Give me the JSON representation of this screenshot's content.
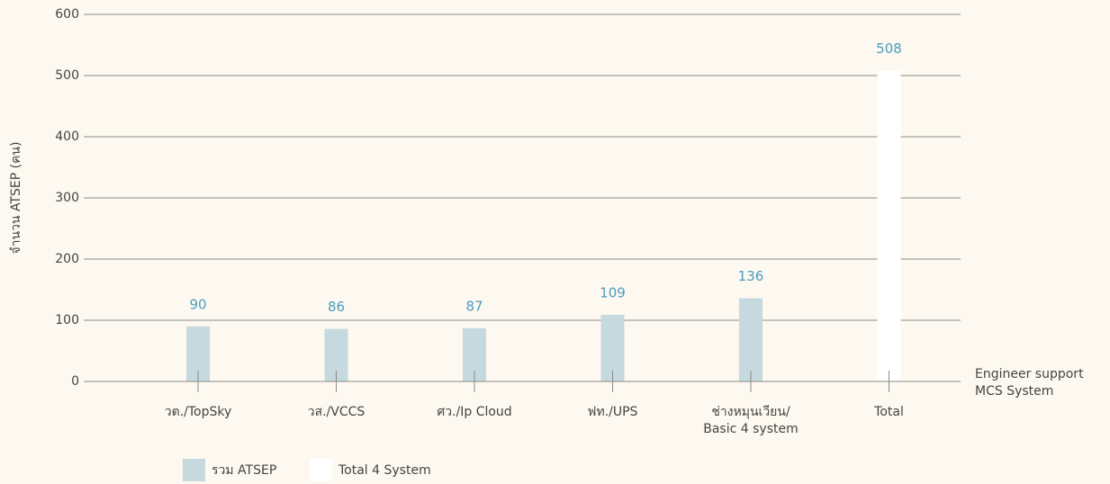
{
  "chart_data": {
    "type": "bar",
    "y_label": "จำนวน ATSEP (คน)",
    "x_label": "Engineer support\nMCS System",
    "categories": [
      "วต./TopSky",
      "วส./VCCS",
      "ศว./Ip Cloud",
      "ฟท./UPS",
      "ช่างหมุนเวียน/\nBasic 4 system",
      "Total"
    ],
    "series": [
      {
        "name": "รวม ATSEP",
        "color": "#c5d9de",
        "values": [
          90,
          86,
          87,
          109,
          136,
          null
        ]
      },
      {
        "name": "Total 4 System",
        "color": "#ffffff",
        "values": [
          null,
          null,
          null,
          null,
          null,
          508
        ]
      }
    ],
    "value_label_color": "#4a9dc0",
    "ylim": [
      0,
      600
    ],
    "yticks": [
      0,
      100,
      200,
      300,
      400,
      500,
      600
    ],
    "grid": true,
    "legend": "bottom"
  }
}
